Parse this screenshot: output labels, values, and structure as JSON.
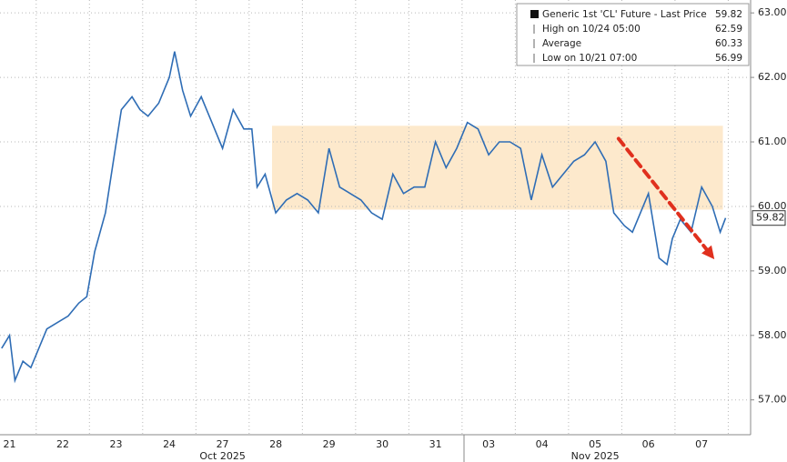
{
  "chart_data": {
    "type": "line",
    "xlim": [
      0.32,
      14.42
    ],
    "ylim": [
      56.46,
      63.2
    ],
    "yticks": [
      {
        "value": 57,
        "label": "57.00"
      },
      {
        "value": 58,
        "label": "58.00"
      },
      {
        "value": 59,
        "label": "59.00"
      },
      {
        "value": 60,
        "label": "60.00"
      },
      {
        "value": 61,
        "label": "61.00"
      },
      {
        "value": 62,
        "label": "62.00"
      },
      {
        "value": 63,
        "label": "63.00"
      }
    ],
    "xticks": [
      {
        "value": 0.5,
        "label": "21"
      },
      {
        "value": 1.5,
        "label": "22"
      },
      {
        "value": 2.5,
        "label": "23"
      },
      {
        "value": 3.5,
        "label": "24"
      },
      {
        "value": 4.5,
        "label": "27"
      },
      {
        "value": 5.5,
        "label": "28"
      },
      {
        "value": 6.5,
        "label": "29"
      },
      {
        "value": 7.5,
        "label": "30"
      },
      {
        "value": 8.5,
        "label": "31"
      },
      {
        "value": 9.5,
        "label": "03"
      },
      {
        "value": 10.5,
        "label": "04"
      },
      {
        "value": 11.5,
        "label": "05"
      },
      {
        "value": 12.5,
        "label": "06"
      },
      {
        "value": 13.5,
        "label": "07"
      }
    ],
    "xgrid": [
      1,
      2,
      3,
      4,
      5,
      6,
      7,
      8,
      9,
      10,
      11,
      12,
      13,
      14
    ],
    "month_labels": [
      {
        "value": 4.5,
        "label": "Oct 2025"
      },
      {
        "value": 11.5,
        "label": "Nov 2025"
      }
    ],
    "grid": true,
    "series": [
      {
        "name": "Generic 1st 'CL' Future - Last Price",
        "color": "#2f6db5",
        "x": [
          0.35,
          0.5,
          0.6,
          0.75,
          0.9,
          1.2,
          1.4,
          1.6,
          1.8,
          1.95,
          2.1,
          2.3,
          2.45,
          2.6,
          2.8,
          2.95,
          3.1,
          3.3,
          3.5,
          3.6,
          3.75,
          3.9,
          4.1,
          4.3,
          4.5,
          4.7,
          4.9,
          5.05,
          5.15,
          5.3,
          5.5,
          5.7,
          5.9,
          6.1,
          6.3,
          6.5,
          6.7,
          6.9,
          7.1,
          7.3,
          7.5,
          7.7,
          7.9,
          8.1,
          8.3,
          8.5,
          8.7,
          8.9,
          9.1,
          9.3,
          9.5,
          9.7,
          9.9,
          10.1,
          10.3,
          10.5,
          10.7,
          10.9,
          11.1,
          11.3,
          11.5,
          11.7,
          11.85,
          12.05,
          12.2,
          12.5,
          12.7,
          12.85,
          12.95,
          13.1,
          13.3,
          13.5,
          13.7,
          13.85,
          13.95
        ],
        "values": [
          57.8,
          58.0,
          57.3,
          57.6,
          57.5,
          58.1,
          58.2,
          58.3,
          58.5,
          58.6,
          59.3,
          59.9,
          60.7,
          61.5,
          61.7,
          61.5,
          61.4,
          61.6,
          62.0,
          62.4,
          61.8,
          61.4,
          61.7,
          61.3,
          60.9,
          61.5,
          61.2,
          61.2,
          60.3,
          60.5,
          59.9,
          60.1,
          60.2,
          60.1,
          59.9,
          60.9,
          60.3,
          60.2,
          60.1,
          59.9,
          59.8,
          60.5,
          60.2,
          60.3,
          60.3,
          61.0,
          60.6,
          60.9,
          61.3,
          61.2,
          60.8,
          61.0,
          61.0,
          60.9,
          60.1,
          60.8,
          60.3,
          60.5,
          60.7,
          60.8,
          61.0,
          60.7,
          59.9,
          59.7,
          59.6,
          60.2,
          59.2,
          59.1,
          59.5,
          59.8,
          59.6,
          60.3,
          60.0,
          59.6,
          59.82
        ]
      }
    ],
    "highlight": {
      "x": [
        5.43,
        13.9
      ],
      "y": [
        59.95,
        61.25
      ],
      "color": "#fde9cc"
    },
    "arrow": {
      "x": [
        11.94,
        13.74
      ],
      "y": [
        61.05,
        59.18
      ],
      "color": "#e0301e"
    },
    "legend": [
      {
        "label": "Generic 1st 'CL' Future - Last Price",
        "value": 59.82
      },
      {
        "label": "High on 10/24 05:00",
        "value": 62.59
      },
      {
        "label": "Average",
        "value": 60.33
      },
      {
        "label": "Low on 10/21 07:00",
        "value": 56.99
      }
    ]
  }
}
